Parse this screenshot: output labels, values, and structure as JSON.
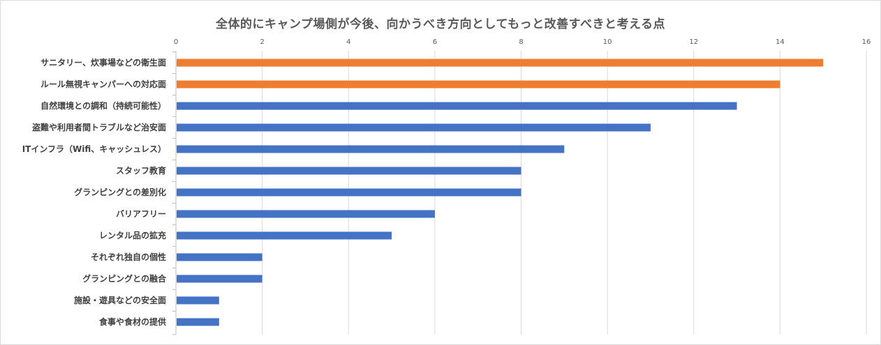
{
  "chart_data": {
    "type": "bar",
    "orientation": "horizontal",
    "title": "全体的にキャンプ場側が今後、向かうべき方向としてもっと改善すべきと考える点",
    "xlabel": "",
    "ylabel": "",
    "xlim": [
      0,
      16
    ],
    "ticks": [
      0,
      2,
      4,
      6,
      8,
      10,
      12,
      14,
      16
    ],
    "axis_position": "top",
    "grid": true,
    "legend": "none",
    "colors": {
      "default": "#4472c4",
      "highlight": "#ed7d31",
      "grid": "#d9d9d9",
      "axis": "#bfbfbf"
    },
    "categories": [
      "サニタリー、炊事場などの衛生面",
      "ルール無視キャンパーへの対応面",
      "自然環境との調和（持続可能性）",
      "盗難や利用者間トラブルなど治安面",
      "ITインフラ（Wifi、キャッシュレス）",
      "スタッフ教育",
      "グランピングとの差別化",
      "バリアフリー",
      "レンタル品の拡充",
      "それぞれ独自の個性",
      "グランピングとの融合",
      "施設・遊具などの安全面",
      "食事や食材の提供"
    ],
    "values": [
      15,
      14,
      13,
      11,
      9,
      8,
      8,
      6,
      5,
      2,
      2,
      1,
      1
    ],
    "highlighted": [
      true,
      true,
      false,
      false,
      false,
      false,
      false,
      false,
      false,
      false,
      false,
      false,
      false
    ]
  }
}
